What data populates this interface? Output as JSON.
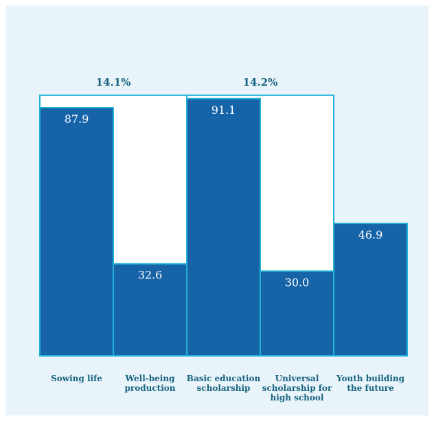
{
  "chart_data": {
    "type": "bar",
    "title": "",
    "xlabel": "",
    "ylabel": "",
    "ylim": [
      0,
      100
    ],
    "categories": [
      [
        "Sowing life"
      ],
      [
        "Well-being",
        "production"
      ],
      [
        "Basic education",
        "scholarship"
      ],
      [
        "Universal",
        "scholarship for",
        "high school"
      ],
      [
        "Youth building",
        "the future"
      ]
    ],
    "values": [
      87.9,
      32.6,
      91.1,
      30.0,
      46.9
    ],
    "value_labels": [
      "87.9",
      "32.6",
      "91.1",
      "30.0",
      "46.9"
    ],
    "group_annotations": [
      {
        "label": "14.1%",
        "bars": [
          0,
          1
        ],
        "top_value": 92.3
      },
      {
        "label": "14.2%",
        "bars": [
          2,
          3
        ],
        "top_value": 92.3
      }
    ],
    "colors": {
      "background": "#e9f3fa",
      "bar_fill": "#1763a8",
      "bar_stroke": "#21b4d6",
      "bracket_fill": "#ffffff",
      "text": "#17637f"
    },
    "grid": false,
    "legend": "none"
  }
}
